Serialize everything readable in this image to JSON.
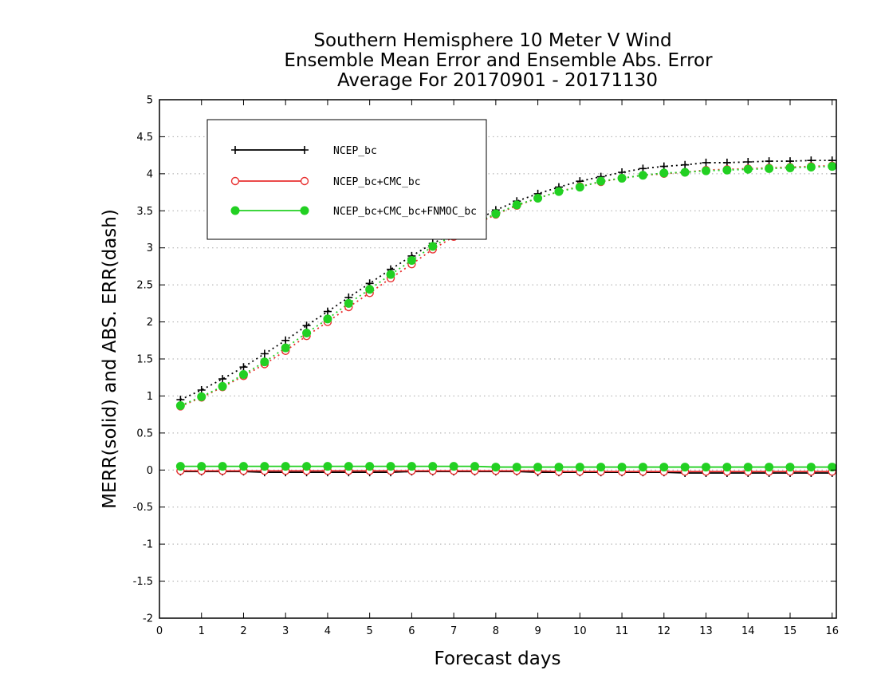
{
  "chart_data": {
    "type": "line",
    "title": [
      "Southern Hemisphere 10 Meter V Wind",
      "Ensemble Mean Error and Ensemble Abs. Error",
      "Average For 20170901 - 20171130"
    ],
    "xlabel": "Forecast days",
    "ylabel": "MERR(solid) and ABS. ERR(dash)",
    "xlim": [
      0,
      16.1
    ],
    "ylim": [
      -2,
      5
    ],
    "xticks": [
      "0",
      "1",
      "2",
      "3",
      "4",
      "5",
      "6",
      "7",
      "8",
      "9",
      "10",
      "11",
      "12",
      "13",
      "14",
      "15",
      "16"
    ],
    "yticks": [
      "5",
      "4.5",
      "4",
      "3.5",
      "3",
      "2.5",
      "2",
      "1.5",
      "1",
      "0.5",
      "0",
      "-0.5",
      "-1",
      "-1.5",
      "-2"
    ],
    "grid": true,
    "legend_position": "top-left",
    "x": [
      0.5,
      1,
      1.5,
      2,
      2.5,
      3,
      3.5,
      4,
      4.5,
      5,
      5.5,
      6,
      6.5,
      7,
      7.5,
      8,
      8.5,
      9,
      9.5,
      10,
      10.5,
      11,
      11.5,
      12,
      12.5,
      13,
      13.5,
      14,
      14.5,
      15,
      15.5,
      16
    ],
    "series": [
      {
        "name": "NCEP_bc",
        "color": "#000000",
        "marker": "plus",
        "abs_err": [
          0.95,
          1.08,
          1.23,
          1.39,
          1.57,
          1.75,
          1.95,
          2.14,
          2.33,
          2.52,
          2.71,
          2.89,
          3.06,
          3.2,
          3.36,
          3.51,
          3.63,
          3.73,
          3.82,
          3.9,
          3.96,
          4.02,
          4.07,
          4.1,
          4.12,
          4.15,
          4.15,
          4.16,
          4.17,
          4.17,
          4.18,
          4.18
        ],
        "mean_err": [
          -0.02,
          -0.02,
          -0.02,
          -0.02,
          -0.03,
          -0.03,
          -0.03,
          -0.03,
          -0.03,
          -0.03,
          -0.03,
          -0.02,
          -0.02,
          -0.02,
          -0.02,
          -0.02,
          -0.02,
          -0.03,
          -0.03,
          -0.03,
          -0.03,
          -0.03,
          -0.03,
          -0.03,
          -0.04,
          -0.04,
          -0.04,
          -0.04,
          -0.04,
          -0.04,
          -0.04,
          -0.04
        ]
      },
      {
        "name": "NCEP_bc+CMC_bc",
        "color": "#e83030",
        "marker": "circle-open",
        "abs_err": [
          0.86,
          0.98,
          1.12,
          1.27,
          1.43,
          1.61,
          1.81,
          2.0,
          2.2,
          2.39,
          2.59,
          2.78,
          2.98,
          3.15,
          3.31,
          3.45,
          3.57,
          3.67,
          3.76,
          3.83,
          3.89,
          3.94,
          3.98,
          4.0,
          4.02,
          4.05,
          4.06,
          4.07,
          4.08,
          4.09,
          4.1,
          4.11
        ],
        "mean_err": [
          -0.01,
          -0.01,
          -0.01,
          -0.01,
          -0.01,
          -0.01,
          -0.01,
          -0.01,
          -0.01,
          -0.01,
          -0.01,
          -0.01,
          -0.01,
          -0.01,
          -0.01,
          -0.01,
          -0.01,
          -0.01,
          -0.02,
          -0.02,
          -0.02,
          -0.02,
          -0.02,
          -0.02,
          -0.02,
          -0.02,
          -0.02,
          -0.02,
          -0.02,
          -0.02,
          -0.02,
          -0.02
        ]
      },
      {
        "name": "NCEP_bc+CMC_bc+FNMOC_bc",
        "color": "#22d022",
        "marker": "circle-filled",
        "abs_err": [
          0.87,
          0.99,
          1.13,
          1.29,
          1.46,
          1.65,
          1.85,
          2.04,
          2.25,
          2.44,
          2.64,
          2.83,
          3.02,
          3.17,
          3.33,
          3.46,
          3.58,
          3.67,
          3.76,
          3.82,
          3.9,
          3.94,
          3.98,
          4.01,
          4.02,
          4.04,
          4.05,
          4.06,
          4.07,
          4.08,
          4.09,
          4.1
        ],
        "mean_err": [
          0.05,
          0.05,
          0.05,
          0.05,
          0.05,
          0.05,
          0.05,
          0.05,
          0.05,
          0.05,
          0.05,
          0.05,
          0.05,
          0.05,
          0.05,
          0.04,
          0.04,
          0.04,
          0.04,
          0.04,
          0.04,
          0.04,
          0.04,
          0.04,
          0.04,
          0.04,
          0.04,
          0.04,
          0.04,
          0.04,
          0.04,
          0.04
        ]
      }
    ]
  }
}
